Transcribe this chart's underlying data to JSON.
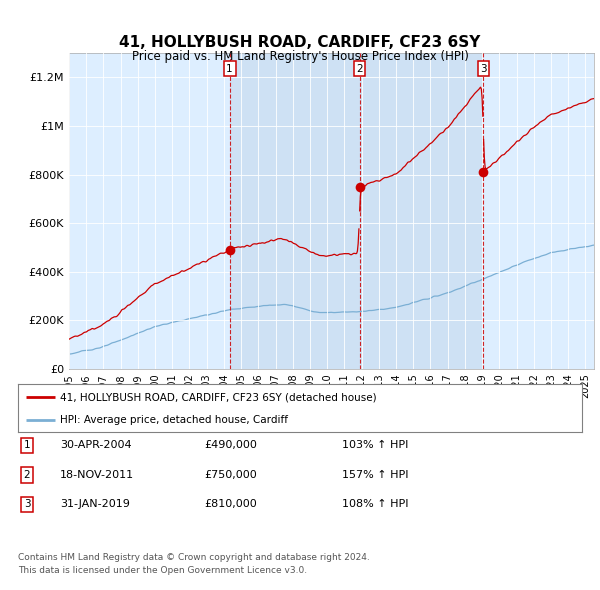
{
  "title": "41, HOLLYBUSH ROAD, CARDIFF, CF23 6SY",
  "subtitle": "Price paid vs. HM Land Registry's House Price Index (HPI)",
  "legend_line1": "41, HOLLYBUSH ROAD, CARDIFF, CF23 6SY (detached house)",
  "legend_line2": "HPI: Average price, detached house, Cardiff",
  "sale_color": "#cc0000",
  "hpi_color": "#7bafd4",
  "bg_color": "#ddeeff",
  "band_color": "#c8dcf0",
  "annotation_box_color": "#cc0000",
  "dashed_line_color": "#cc0000",
  "footer1": "Contains HM Land Registry data © Crown copyright and database right 2024.",
  "footer2": "This data is licensed under the Open Government Licence v3.0.",
  "table_rows": [
    {
      "num": "1",
      "date": "30-APR-2004",
      "price": "£490,000",
      "hpi": "103% ↑ HPI"
    },
    {
      "num": "2",
      "date": "18-NOV-2011",
      "price": "£750,000",
      "hpi": "157% ↑ HPI"
    },
    {
      "num": "3",
      "date": "31-JAN-2019",
      "price": "£810,000",
      "hpi": "108% ↑ HPI"
    }
  ],
  "sale_dates_num": [
    2004.33,
    2011.88,
    2019.08
  ],
  "sale_prices": [
    490000,
    750000,
    810000
  ],
  "ylim": [
    0,
    1300000
  ],
  "xlim_start": 1995,
  "xlim_end": 2025.5,
  "yticks": [
    0,
    200000,
    400000,
    600000,
    800000,
    1000000,
    1200000
  ],
  "ytick_labels": [
    "£0",
    "£200K",
    "£400K",
    "£600K",
    "£800K",
    "£1M",
    "£1.2M"
  ],
  "xtick_years": [
    1995,
    1996,
    1997,
    1998,
    1999,
    2000,
    2001,
    2002,
    2003,
    2004,
    2005,
    2006,
    2007,
    2008,
    2009,
    2010,
    2011,
    2012,
    2013,
    2014,
    2015,
    2016,
    2017,
    2018,
    2019,
    2020,
    2021,
    2022,
    2023,
    2024,
    2025
  ]
}
